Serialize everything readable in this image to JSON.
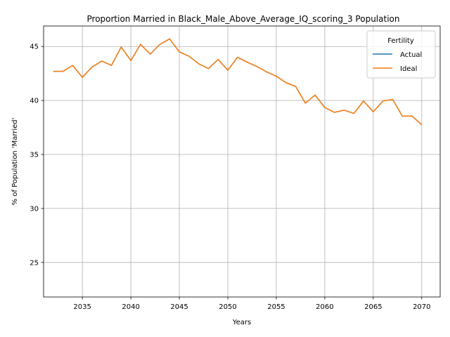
{
  "chart_data": {
    "type": "line",
    "title": "Proportion Married in Black_Male_Above_Average_IQ_scoring_3 Population",
    "xlabel": "Years",
    "ylabel": "% of Population 'Married'",
    "xlim": [
      2031,
      2071.9
    ],
    "ylim": [
      21.8,
      46.9
    ],
    "xticks": [
      2035,
      2040,
      2045,
      2050,
      2055,
      2060,
      2065,
      2070
    ],
    "yticks": [
      25,
      30,
      35,
      40,
      45
    ],
    "grid": true,
    "legend": {
      "title": "Fertility",
      "placement": "top-right",
      "entries": [
        "Actual",
        "Ideal"
      ]
    },
    "colors": {
      "Actual": "#1f77b4",
      "Ideal": "#ff7f0e"
    },
    "x": [
      2032,
      2033,
      2034,
      2035,
      2036,
      2037,
      2038,
      2039,
      2040,
      2041,
      2042,
      2043,
      2044,
      2045,
      2046,
      2047,
      2048,
      2049,
      2050,
      2051,
      2052,
      2053,
      2054,
      2055,
      2056,
      2057,
      2058,
      2059,
      2060,
      2061,
      2062,
      2063,
      2064,
      2065,
      2066,
      2067,
      2068,
      2069,
      2070
    ],
    "series": [
      {
        "name": "Actual",
        "values": [
          42.7,
          42.7,
          43.25,
          42.15,
          43.1,
          43.65,
          43.25,
          44.95,
          43.7,
          45.2,
          44.3,
          45.2,
          45.7,
          44.5,
          44.1,
          43.4,
          42.95,
          43.8,
          42.8,
          44.0,
          43.55,
          43.15,
          42.65,
          42.25,
          41.65,
          41.3,
          39.75,
          40.5,
          39.35,
          38.9,
          39.1,
          38.8,
          39.95,
          38.95,
          39.95,
          40.1,
          38.55,
          38.55,
          37.75
        ]
      },
      {
        "name": "Ideal",
        "values": [
          42.7,
          42.7,
          43.25,
          42.15,
          43.1,
          43.65,
          43.25,
          44.95,
          43.7,
          45.2,
          44.3,
          45.2,
          45.7,
          44.5,
          44.1,
          43.4,
          42.95,
          43.8,
          42.8,
          44.0,
          43.55,
          43.15,
          42.65,
          42.25,
          41.65,
          41.3,
          39.75,
          40.5,
          39.35,
          38.9,
          39.1,
          38.8,
          39.95,
          38.95,
          39.95,
          40.1,
          38.55,
          38.55,
          37.75
        ]
      }
    ]
  }
}
